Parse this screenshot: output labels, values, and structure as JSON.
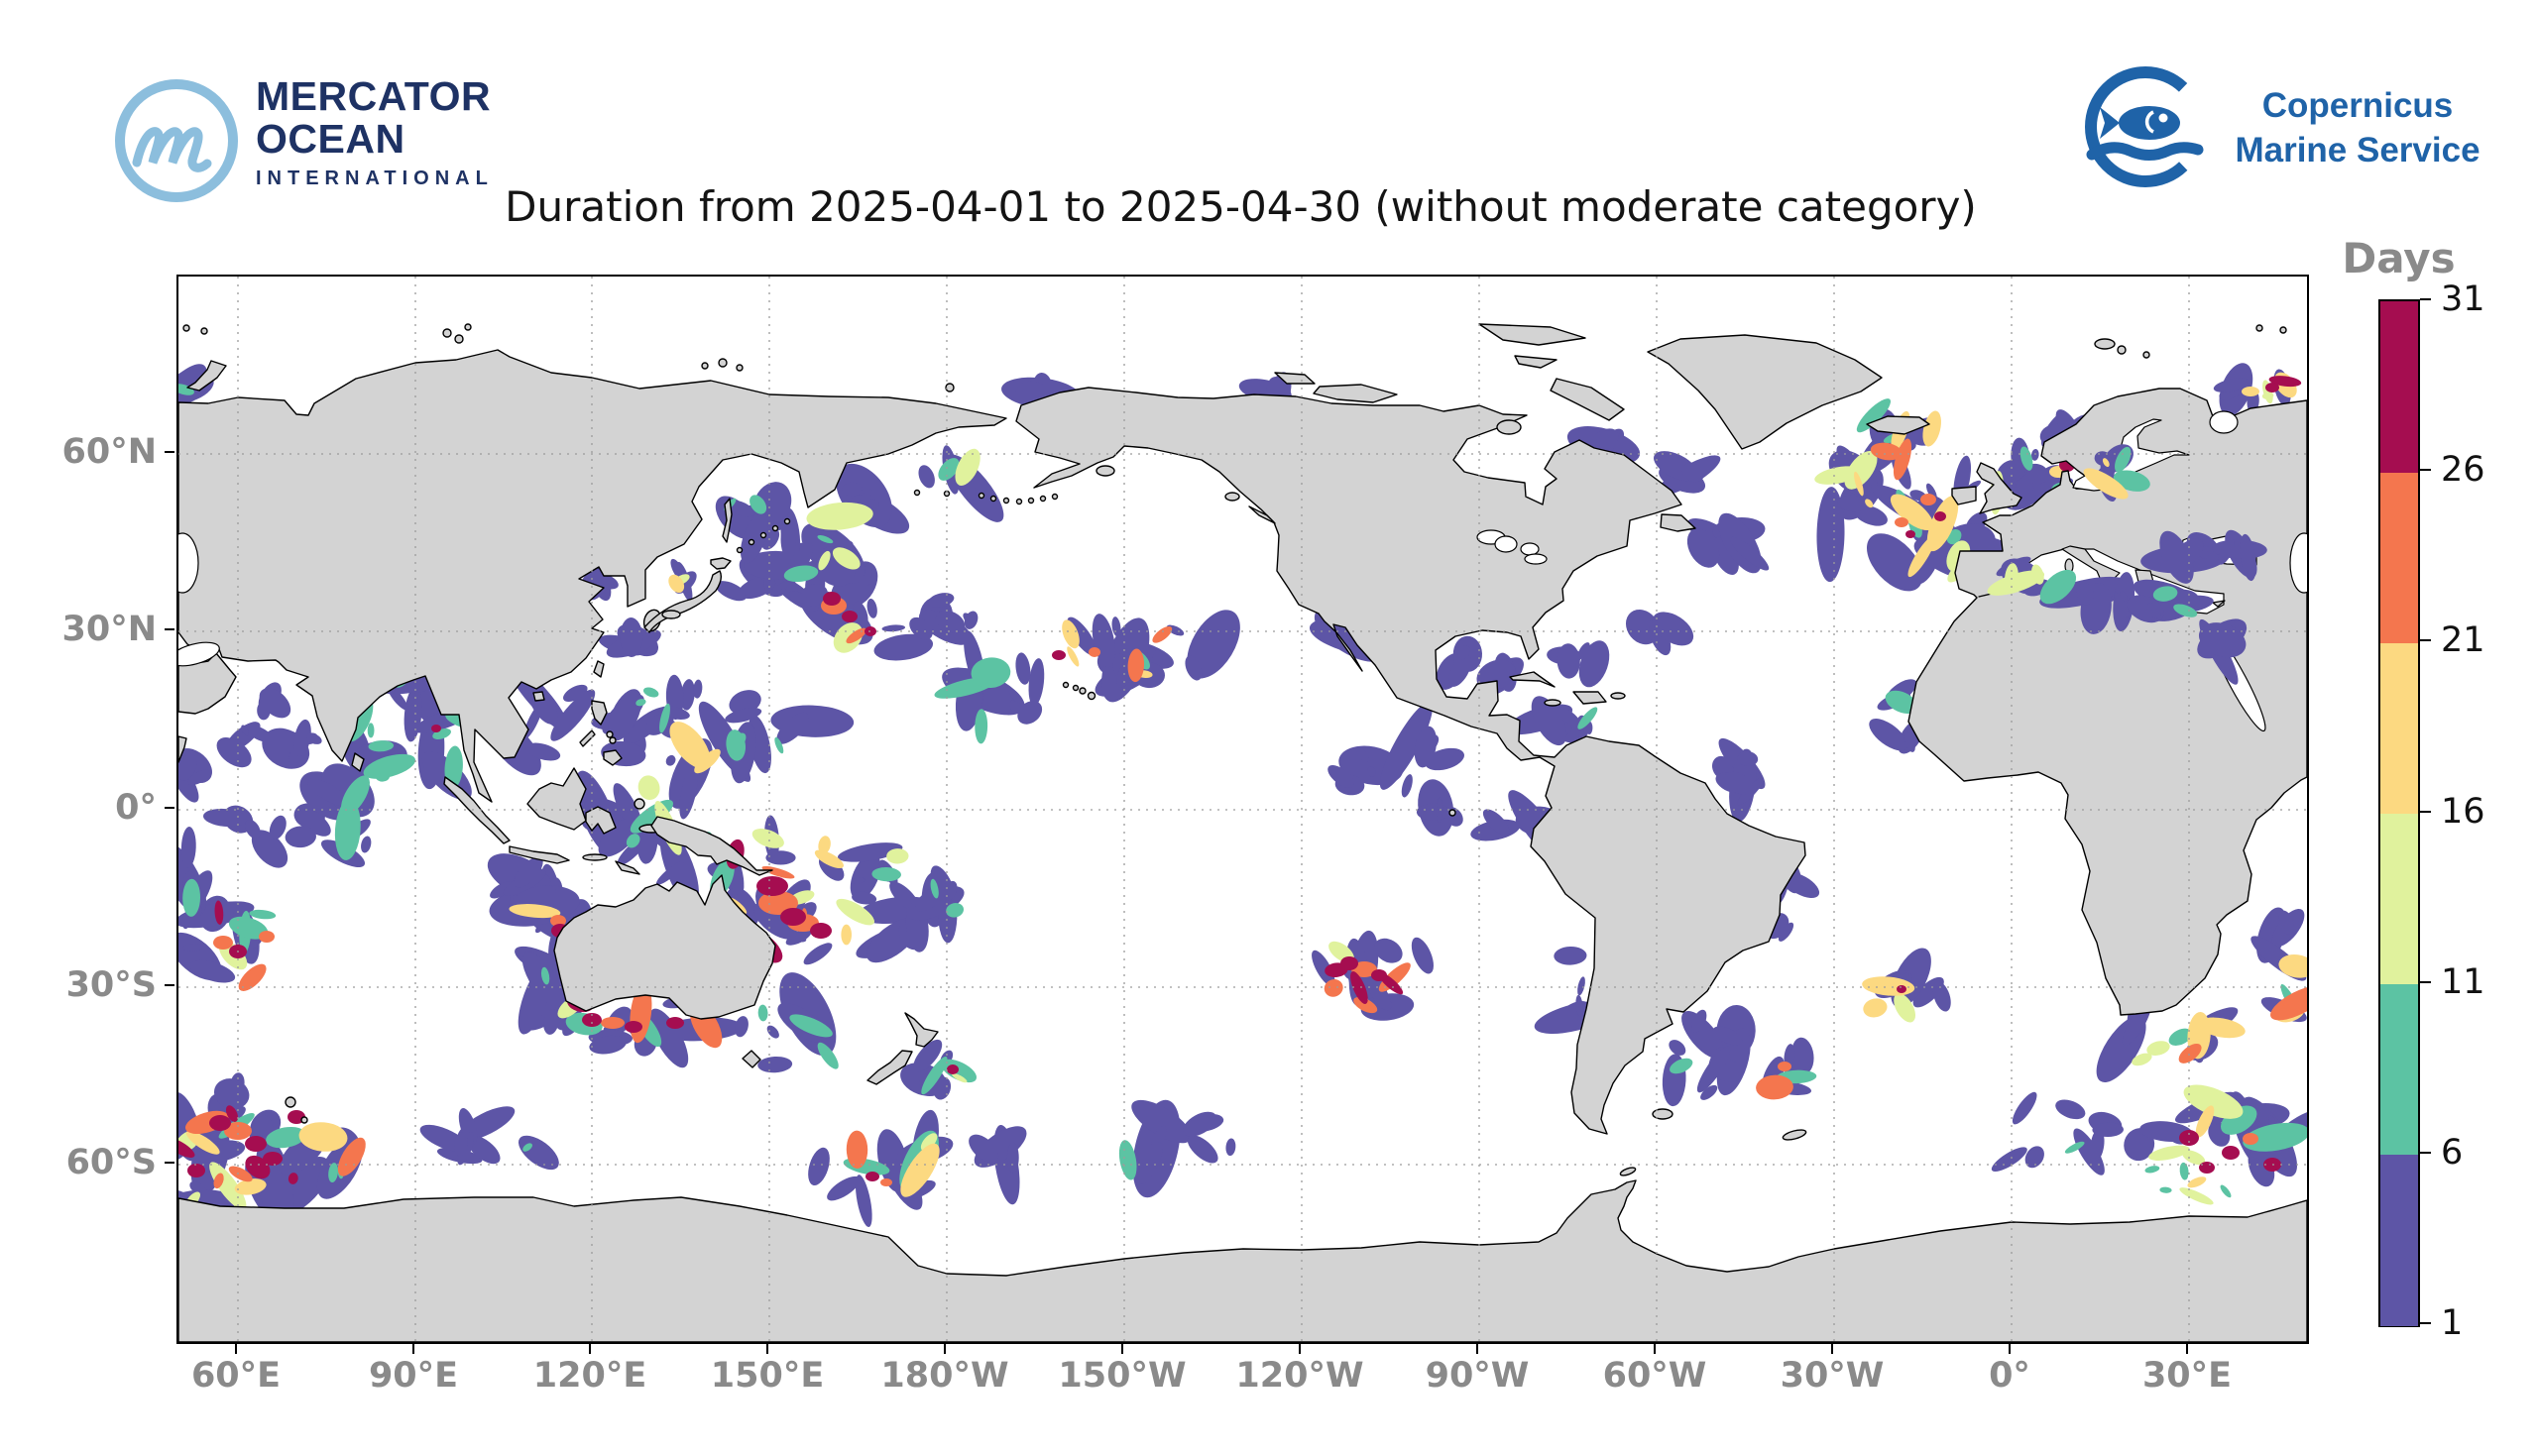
{
  "title": "Duration from 2025-04-01 to 2025-04-30 (without moderate category)",
  "branding": {
    "mercator_ocean": {
      "monogram": "m",
      "name_line1": "MERCATOR",
      "name_line2": "OCEAN",
      "name_line3": "INTERNATIONAL"
    },
    "copernicus": {
      "line1": "Copernicus",
      "line2": "Marine Service"
    }
  },
  "map": {
    "x_tick_labels": [
      "60°E",
      "90°E",
      "120°E",
      "150°E",
      "180°W",
      "150°W",
      "120°W",
      "90°W",
      "60°W",
      "30°W",
      "0°",
      "30°E"
    ],
    "y_tick_labels": [
      "60°N",
      "30°N",
      "0°",
      "30°S",
      "60°S"
    ]
  },
  "colorbar": {
    "label": "Days",
    "tick_labels_top_to_bottom": [
      "31",
      "26",
      "21",
      "16",
      "11",
      "6",
      "1"
    ],
    "bin_colors_bottom_to_top": [
      "#5D55A6",
      "#5CC3A3",
      "#E0F29D",
      "#FCD981",
      "#F4764E",
      "#A50D50"
    ]
  },
  "chart_data": {
    "type": "heatmap",
    "title": "Duration from 2025-04-01 to 2025-04-30 (without moderate category)",
    "projection": "global equirectangular (Plate Carrée), Pacific-centered (left edge ≈ 50°E), land gray, ocean white",
    "x_tick_labels": [
      "60°E",
      "90°E",
      "120°E",
      "150°E",
      "180°W",
      "150°W",
      "120°W",
      "90°W",
      "60°W",
      "30°W",
      "0°",
      "30°E"
    ],
    "y_tick_labels": [
      "60°N",
      "30°N",
      "0°",
      "30°S",
      "60°S"
    ],
    "grid": "dashed gray graticule every 30 degrees",
    "colorbar": {
      "label": "Days",
      "min": 1,
      "max": 31,
      "boundaries": [
        1,
        6,
        11,
        16,
        21,
        26,
        31
      ],
      "colors_low_to_high": [
        "#5D55A6",
        "#5CC3A3",
        "#E0F29D",
        "#FCD981",
        "#F4764E",
        "#A50D50"
      ],
      "orientation": "vertical, right of map"
    },
    "hotspots": [
      {
        "region": "Coral Sea / Southwest Pacific east of Australia",
        "approx_days": "6-31"
      },
      {
        "region": "Southern Ocean Kerguelen sector (50-85°E, 48-65°S)",
        "approx_days": "11-31"
      },
      {
        "region": "Southern Ocean south of Africa (20-50°E, 50-65°S)",
        "approx_days": "11-31"
      },
      {
        "region": "Northeast Atlantic west of Ireland/UK and North Sea / Baltic",
        "approx_days": "1-31"
      },
      {
        "region": "South of Australia (Great Australian Bight, 115-140°E, 33-39°S)",
        "approx_days": "6-31"
      },
      {
        "region": "Northwest Pacific east of Japan (150-170°E, 30-45°N)",
        "approx_days": "1-31"
      },
      {
        "region": "Southwest Indian Ocean (55-70°E, 18-28°S)",
        "approx_days": "6-26"
      },
      {
        "region": "Southeast Pacific (95-120°W, 20-32°S)",
        "approx_days": "6-31"
      },
      {
        "region": "Western Pacific warm pool / Philippine Sea",
        "approx_days": "1-21"
      },
      {
        "region": "Bay of Bengal and Andaman Sea",
        "approx_days": "1-16"
      },
      {
        "region": "Band northeast of Hawaii (165-135°W, 23-30°N)",
        "approx_days": "1-26"
      },
      {
        "region": "Barents Sea (~40°E, 70°N)",
        "approx_days": "6-31"
      },
      {
        "region": "Scattered 1-6 day (purple) patches across all tropical and mid-latitude oceans",
        "approx_days": "1-6"
      }
    ]
  }
}
